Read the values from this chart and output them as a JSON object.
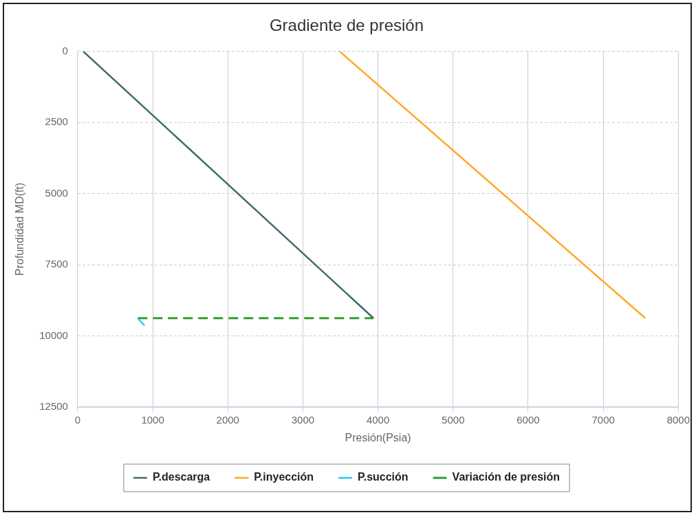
{
  "chart_data": {
    "type": "line",
    "title": "Gradiente de presión",
    "xlabel": "Presión(Psia)",
    "ylabel": "Profundidad MD(ft)",
    "xlim": [
      0,
      8000
    ],
    "xticks": [
      0,
      1000,
      2000,
      3000,
      4000,
      5000,
      6000,
      7000,
      8000
    ],
    "ylim": [
      12500,
      0
    ],
    "yticks": [
      0,
      2500,
      5000,
      7500,
      10000,
      12500
    ],
    "grid": true,
    "legend": "bottom",
    "marker": "none",
    "series": [
      {
        "name": "P.descarga",
        "color": "#3f6a6a",
        "x": [
          75,
          3940
        ],
        "values": [
          0,
          9380
        ]
      },
      {
        "name": "P.inyección",
        "color": "#ffa726",
        "x": [
          3490,
          7560
        ],
        "values": [
          0,
          9380
        ]
      },
      {
        "name": "P.succión",
        "color": "#29c5f6",
        "x": [
          800,
          890
        ],
        "values": [
          9380,
          9640
        ]
      },
      {
        "name": "Variación de presión",
        "color": "#2ca02c",
        "line_style": "dashed",
        "x": [
          800,
          3940
        ],
        "values": [
          9380,
          9380
        ]
      }
    ]
  }
}
